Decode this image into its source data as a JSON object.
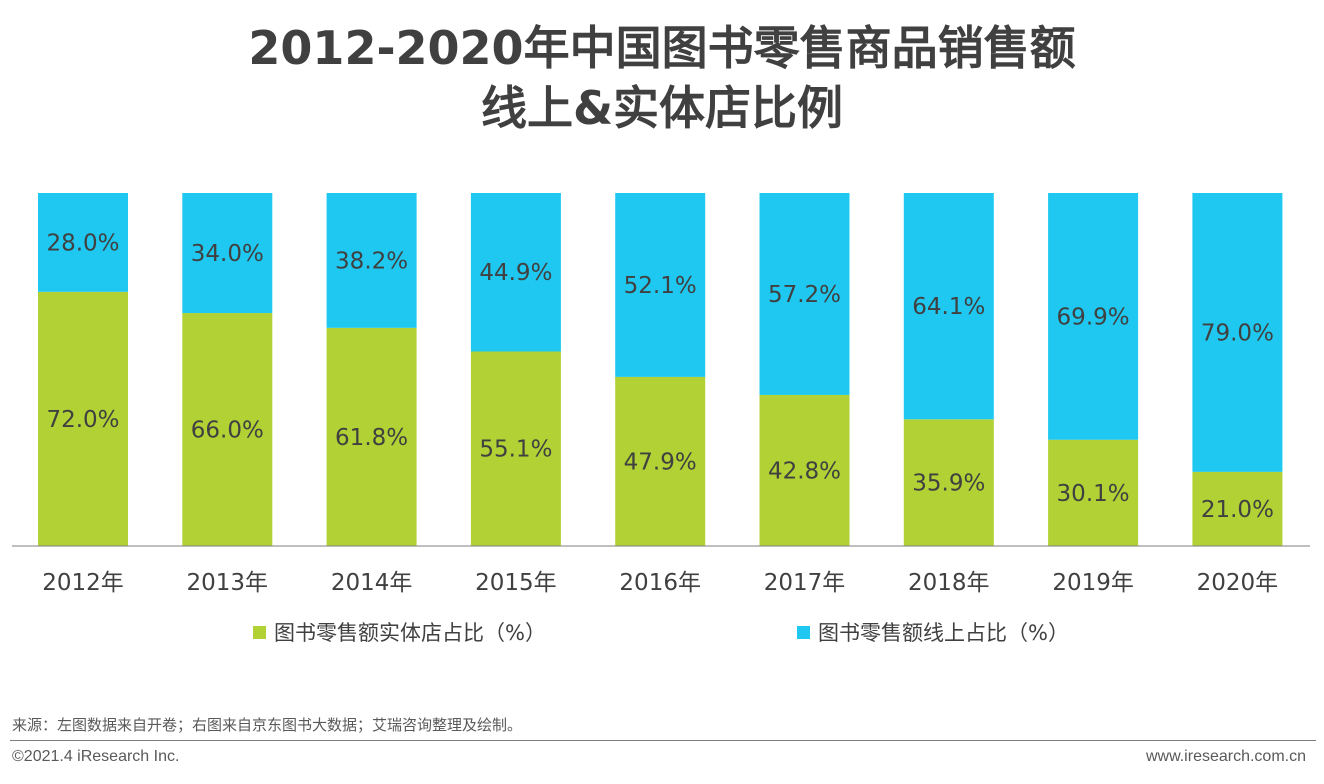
{
  "title": {
    "line1": "2012-2020年中国图书零售商品销售额",
    "line2": "线上&实体店比例"
  },
  "colors": {
    "offline": "#b1d135",
    "online": "#1fc8f0",
    "text": "#404040"
  },
  "chart_data": {
    "type": "bar",
    "stacked": true,
    "categories": [
      "2012年",
      "2013年",
      "2014年",
      "2015年",
      "2016年",
      "2017年",
      "2018年",
      "2019年",
      "2020年"
    ],
    "series": [
      {
        "name": "图书零售额实体店占比（%）",
        "values": [
          72.0,
          66.0,
          61.8,
          55.1,
          47.9,
          42.8,
          35.9,
          30.1,
          21.0
        ]
      },
      {
        "name": "图书零售额线上占比（%）",
        "values": [
          28.0,
          34.0,
          38.2,
          44.9,
          52.1,
          57.2,
          64.1,
          69.9,
          79.0
        ]
      }
    ],
    "ylim": [
      0,
      100
    ],
    "value_format": "%",
    "legend_position": "bottom",
    "grid": false
  },
  "legend": {
    "offline": "图书零售额实体店占比（%）",
    "online": "图书零售额线上占比（%）"
  },
  "source": "来源：左图数据来自开卷；右图来自京东图书大数据；艾瑞咨询整理及绘制。",
  "footer": {
    "copyright": "©2021.4 iResearch Inc.",
    "website": "www.iresearch.com.cn"
  }
}
